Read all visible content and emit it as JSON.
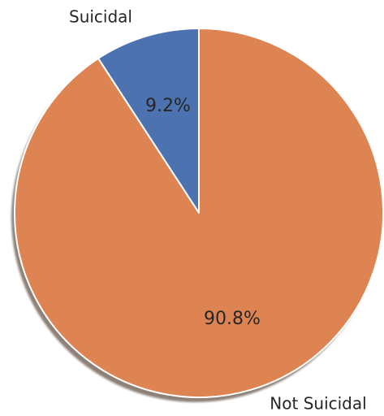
{
  "chart_data": {
    "type": "pie",
    "title": "",
    "categories": [
      "Suicidal",
      "Not Suicidal"
    ],
    "values": [
      9.2,
      90.8
    ],
    "value_labels": [
      "9.2%",
      "90.8%"
    ],
    "colors": [
      "#4c72b0",
      "#dd8452"
    ],
    "start_angle_deg": 90,
    "direction": "counterclockwise",
    "shadow": true,
    "legend": "none"
  }
}
